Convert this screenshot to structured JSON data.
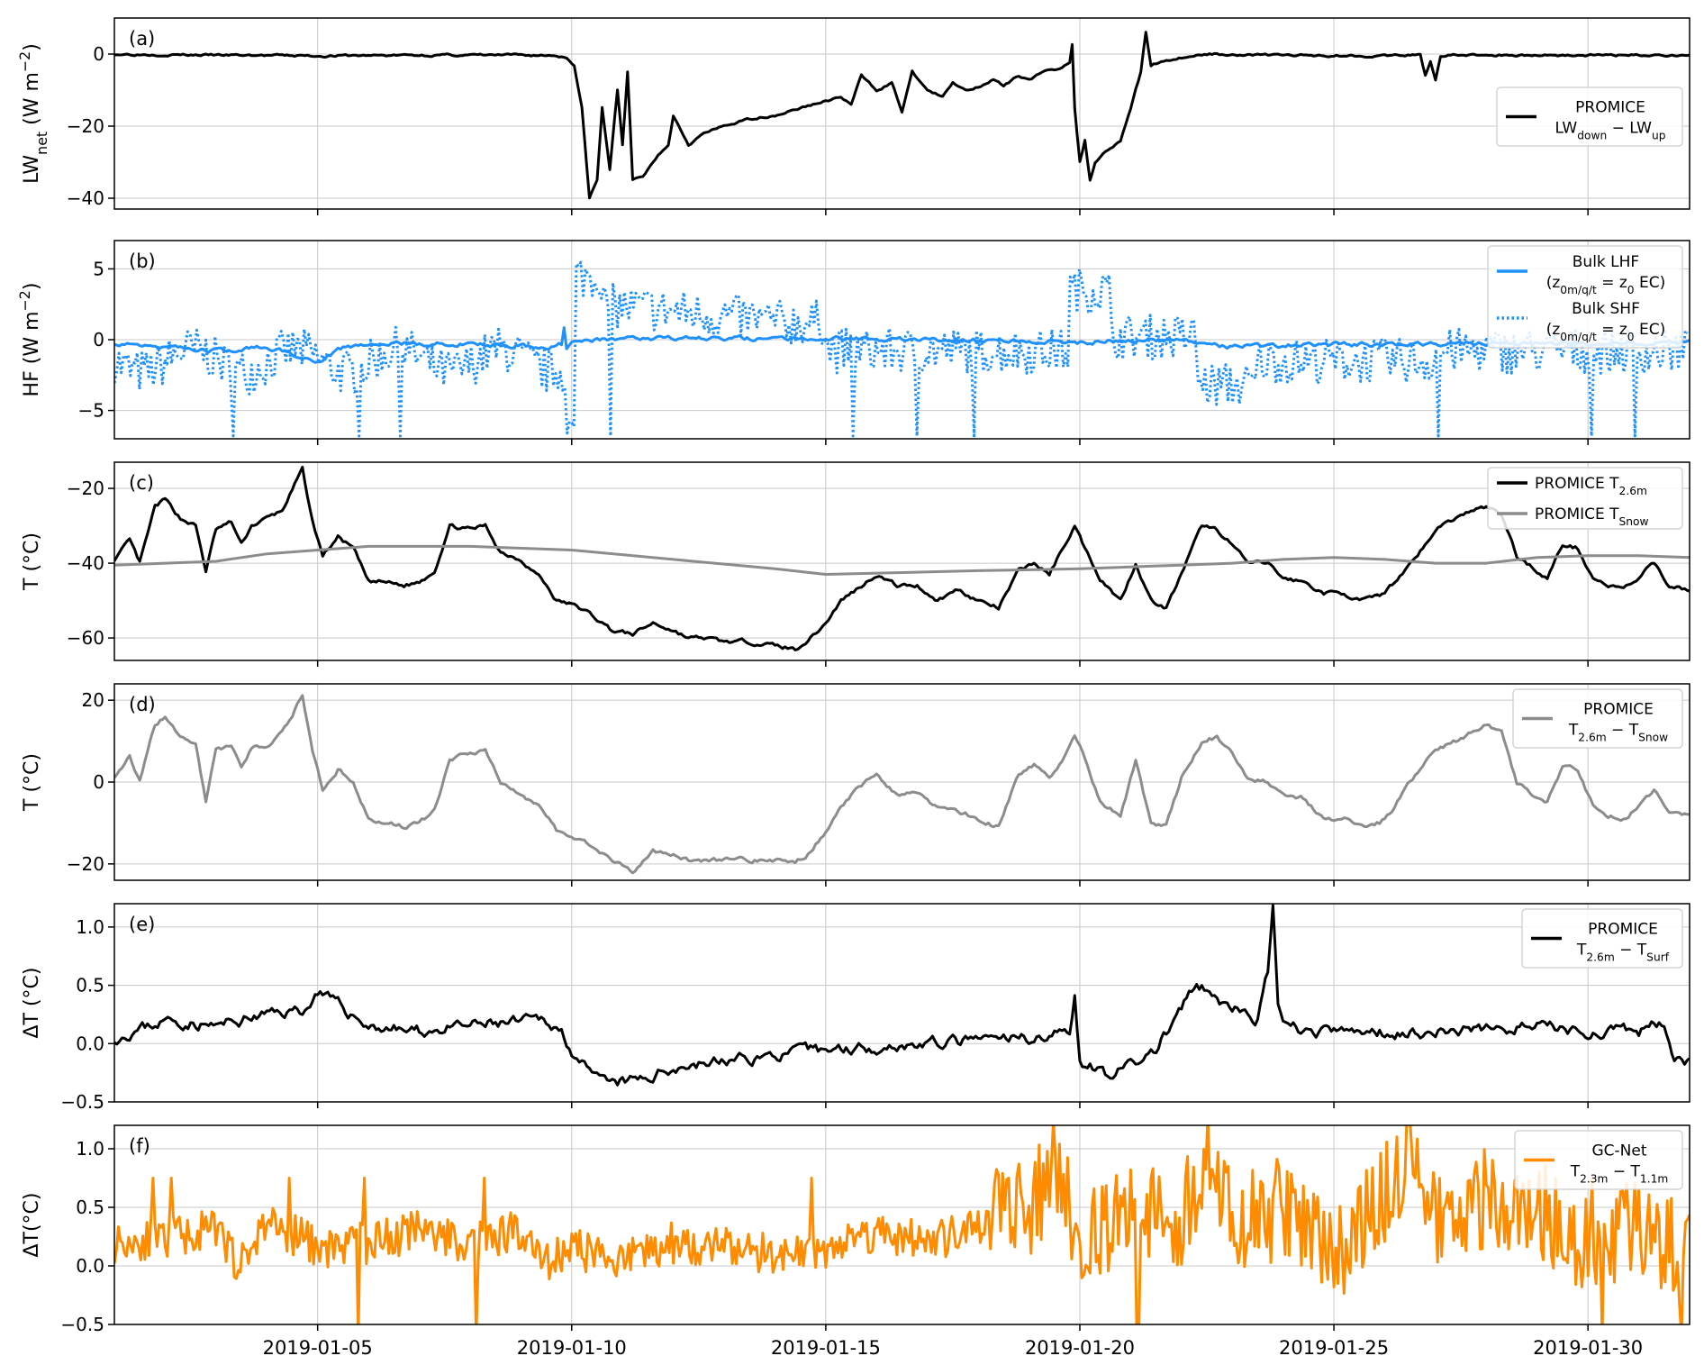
{
  "x_ticks": [
    "2019-01-05",
    "2019-01-10",
    "2019-01-15",
    "2019-01-20",
    "2019-01-25",
    "2019-01-30"
  ],
  "colors": {
    "black": "#000000",
    "blue": "#1e90ff",
    "gray": "#8c8c8c",
    "orange": "#ff8c00",
    "grid": "#c8c8c8"
  },
  "chart_data": [
    {
      "type": "line",
      "panel_label": "(a)",
      "ylabel": "LW",
      "ylabel_sub": "net",
      "ylabel_rest": " (W m",
      "ylabel_sup": "−2",
      "ylabel_end": ")",
      "ylim": [
        -43,
        10
      ],
      "yticks": [
        0,
        -20,
        -40
      ],
      "ytick_labels": [
        "0",
        "−20",
        "−40"
      ],
      "grid": true,
      "legend_position": "right",
      "legend": [
        {
          "line1": "PROMICE",
          "line2_main1": "LW",
          "line2_sub1": "down",
          "line2_mid": " − LW",
          "line2_sub2": "up",
          "color": "#000000",
          "style": "solid"
        }
      ],
      "series": [
        {
          "color": "#000000",
          "style": "solid",
          "x": [
            1.0,
            3.0,
            5.0,
            7.0,
            9.0,
            9.7,
            9.9,
            10.05,
            10.2,
            10.35,
            10.5,
            10.6,
            10.75,
            10.9,
            11.0,
            11.1,
            11.2,
            11.4,
            11.5,
            11.7,
            11.9,
            12.0,
            12.3,
            12.6,
            13.0,
            13.5,
            14.0,
            14.5,
            15.0,
            15.3,
            15.5,
            15.7,
            16.0,
            16.3,
            16.5,
            16.7,
            17.0,
            17.3,
            17.5,
            17.8,
            18.0,
            18.3,
            18.5,
            18.8,
            19.0,
            19.3,
            19.6,
            19.8,
            19.85,
            19.9,
            20.0,
            20.1,
            20.2,
            20.3,
            20.5,
            20.8,
            21.0,
            21.2,
            21.3,
            21.4,
            21.6,
            22.0,
            22.5,
            24.0,
            26.0,
            26.7,
            26.8,
            26.9,
            27.0,
            27.1,
            27.3,
            28.0,
            30.0,
            32.0
          ],
          "y": [
            0,
            -0.3,
            -0.5,
            -0.3,
            -0.3,
            -0.4,
            -1,
            -3,
            -15,
            -40,
            -35,
            -15,
            -32,
            -10,
            -25,
            -5,
            -35,
            -34,
            -32,
            -28,
            -25,
            -17,
            -25,
            -22,
            -20,
            -18,
            -17,
            -15,
            -13,
            -12,
            -14,
            -6,
            -10,
            -8,
            -16,
            -5,
            -10,
            -12,
            -8,
            -10,
            -9,
            -7,
            -9,
            -6,
            -7,
            -5,
            -4,
            -2,
            3,
            -15,
            -30,
            -24,
            -35,
            -30,
            -27,
            -24,
            -15,
            -5,
            6,
            -3,
            -2,
            -1,
            0,
            -0.3,
            -0.5,
            -0.3,
            -6,
            -2,
            -7,
            -0.5,
            -0.3,
            -0.3,
            -0.3,
            -0.3
          ]
        }
      ]
    },
    {
      "type": "line",
      "panel_label": "(b)",
      "ylabel": "HF",
      "ylabel_sub": "",
      "ylabel_rest": " (W m",
      "ylabel_sup": "−2",
      "ylabel_end": ")",
      "ylim": [
        -7,
        7
      ],
      "yticks": [
        5,
        0,
        -5
      ],
      "ytick_labels": [
        "5",
        "0",
        "−5"
      ],
      "grid": true,
      "legend_position": "top-right",
      "legend": [
        {
          "line1": "Bulk LHF",
          "line2_open": "(z",
          "line2_sub1": "0m/q/t",
          "line2_mid": " = z",
          "line2_sub2": "0",
          "line2_end": " EC)",
          "color": "#1e90ff",
          "style": "solid"
        },
        {
          "line1": "Bulk SHF",
          "line2_open": "(z",
          "line2_sub1": "0m/q/t",
          "line2_mid": " = z",
          "line2_sub2": "0",
          "line2_end": " EC)",
          "color": "#1e90ff",
          "style": "dotted"
        }
      ],
      "series": [
        {
          "color": "#1e90ff",
          "style": "solid",
          "x": [
            1.0,
            2.0,
            3.0,
            4.0,
            5.0,
            5.5,
            6.0,
            8.0,
            9.5,
            9.8,
            9.85,
            9.9,
            10.0,
            10.3,
            11.0,
            15.0,
            17.0,
            19.0,
            20.0,
            21.0,
            22.0,
            22.5,
            23.0,
            25.0,
            26.0,
            28.0,
            30.0,
            32.0
          ],
          "y": [
            -0.2,
            -0.4,
            -0.8,
            -0.5,
            -1.5,
            -0.6,
            -0.3,
            -0.3,
            -0.5,
            -0.3,
            1.0,
            -0.5,
            -0.2,
            0,
            0.1,
            0.1,
            0,
            -0.1,
            -0.2,
            0,
            0,
            -0.3,
            -0.5,
            -0.3,
            -0.4,
            -0.3,
            -0.3,
            -0.2
          ]
        }
      ],
      "shf_pattern": {
        "seed": 7
      }
    },
    {
      "type": "line",
      "panel_label": "(c)",
      "ylabel": "T (°C)",
      "ylim": [
        -66,
        -13
      ],
      "yticks": [
        -20,
        -40,
        -60
      ],
      "ytick_labels": [
        "−20",
        "−40",
        "−60"
      ],
      "grid": true,
      "legend_position": "top-right",
      "legend": [
        {
          "line1_main": "PROMICE T",
          "line1_sub": "2.6m",
          "color": "#000000",
          "style": "solid"
        },
        {
          "line1_main": "PROMICE T",
          "line1_sub": "Snow",
          "color": "#8c8c8c",
          "style": "solid"
        }
      ],
      "series": [
        {
          "color": "#000000",
          "style": "solid",
          "x": [
            1.0,
            1.3,
            1.5,
            1.8,
            2.0,
            2.3,
            2.6,
            2.8,
            3.0,
            3.3,
            3.5,
            3.7,
            4.0,
            4.3,
            4.7,
            4.9,
            5.1,
            5.4,
            5.7,
            6.0,
            6.3,
            6.7,
            7.0,
            7.3,
            7.6,
            8.0,
            8.3,
            8.6,
            9.0,
            9.4,
            9.7,
            10.0,
            10.3,
            10.8,
            11.2,
            11.6,
            12.0,
            12.3,
            12.6,
            13.0,
            13.5,
            14.0,
            14.4,
            14.7,
            15.0,
            15.3,
            15.6,
            16.0,
            16.4,
            16.8,
            17.2,
            17.6,
            18.0,
            18.4,
            18.8,
            19.1,
            19.4,
            19.7,
            19.9,
            20.1,
            20.4,
            20.8,
            21.1,
            21.4,
            21.7,
            22.0,
            22.4,
            22.7,
            23.0,
            23.3,
            23.7,
            24.0,
            24.4,
            24.8,
            25.2,
            25.5,
            25.9,
            26.2,
            26.5,
            26.8,
            27.1,
            27.4,
            27.7,
            28.0,
            28.3,
            28.6,
            28.9,
            29.2,
            29.5,
            29.8,
            30.1,
            30.4,
            30.7,
            31.0,
            31.3,
            31.6,
            32.0
          ],
          "y": [
            -39,
            -34,
            -40,
            -25,
            -23,
            -28,
            -30,
            -42,
            -31,
            -29,
            -35,
            -30,
            -28,
            -26,
            -15,
            -29,
            -38,
            -33,
            -36,
            -45,
            -45,
            -46,
            -45,
            -42,
            -30,
            -31,
            -30,
            -37,
            -39,
            -44,
            -50,
            -51,
            -53,
            -58,
            -59,
            -56,
            -58,
            -60,
            -60,
            -61,
            -61,
            -62,
            -63,
            -60,
            -56,
            -50,
            -47,
            -43,
            -46,
            -46,
            -50,
            -47,
            -50,
            -52,
            -42,
            -40,
            -43,
            -35,
            -30,
            -36,
            -44,
            -50,
            -40,
            -50,
            -52,
            -43,
            -30,
            -31,
            -35,
            -40,
            -40,
            -44,
            -45,
            -48,
            -48,
            -50,
            -49,
            -45,
            -40,
            -35,
            -30,
            -28,
            -26,
            -25,
            -27,
            -38,
            -41,
            -44,
            -35,
            -36,
            -44,
            -46,
            -47,
            -44,
            -40,
            -46,
            -47
          ]
        },
        {
          "color": "#8c8c8c",
          "style": "solid",
          "x": [
            1.0,
            3.0,
            4.0,
            5.0,
            6.0,
            8.0,
            10.0,
            12.0,
            14.0,
            15.0,
            18.0,
            20.0,
            21.0,
            22.0,
            23.0,
            24.0,
            25.0,
            26.0,
            27.0,
            28.0,
            29.0,
            30.0,
            31.0,
            32.0
          ],
          "y": [
            -40.5,
            -39.5,
            -37.5,
            -36.5,
            -35.5,
            -35.5,
            -36.5,
            -39,
            -41.5,
            -43,
            -42,
            -41.5,
            -41,
            -40.5,
            -40,
            -39,
            -38.5,
            -39,
            -40,
            -40,
            -38.5,
            -38,
            -38,
            -38.5
          ]
        }
      ]
    },
    {
      "type": "line",
      "panel_label": "(d)",
      "ylabel": "T (°C)",
      "ylim": [
        -24,
        24
      ],
      "yticks": [
        20,
        0,
        -20
      ],
      "ytick_labels": [
        "20",
        "0",
        "−20"
      ],
      "grid": true,
      "legend_position": "top-right",
      "legend": [
        {
          "line1": "PROMICE",
          "line2_main1": "T",
          "line2_sub1": "2.6m",
          "line2_mid": " − T",
          "line2_sub2": "Snow",
          "color": "#8c8c8c",
          "style": "solid"
        }
      ],
      "series": [
        {
          "color": "#8c8c8c",
          "style": "solid",
          "x": [
            1.0,
            1.3,
            1.5,
            1.8,
            2.0,
            2.3,
            2.6,
            2.8,
            3.0,
            3.3,
            3.5,
            3.7,
            4.0,
            4.3,
            4.7,
            4.9,
            5.1,
            5.4,
            5.7,
            6.0,
            6.3,
            6.7,
            7.0,
            7.3,
            7.6,
            8.0,
            8.3,
            8.6,
            9.0,
            9.4,
            9.7,
            10.0,
            10.3,
            10.8,
            11.2,
            11.6,
            12.0,
            12.3,
            12.6,
            13.0,
            13.5,
            14.0,
            14.4,
            14.7,
            15.0,
            15.3,
            15.6,
            16.0,
            16.4,
            16.8,
            17.2,
            17.6,
            18.0,
            18.4,
            18.8,
            19.1,
            19.4,
            19.7,
            19.9,
            20.1,
            20.4,
            20.8,
            21.1,
            21.4,
            21.7,
            22.0,
            22.4,
            22.7,
            23.0,
            23.3,
            23.7,
            24.0,
            24.4,
            24.8,
            25.2,
            25.5,
            25.9,
            26.2,
            26.5,
            26.8,
            27.1,
            27.4,
            27.7,
            28.0,
            28.3,
            28.6,
            28.9,
            29.2,
            29.5,
            29.8,
            30.1,
            30.4,
            30.7,
            31.0,
            31.3,
            31.6,
            32.0
          ],
          "y": [
            1.5,
            6,
            0,
            14,
            16,
            11,
            9,
            -5,
            8,
            9,
            3,
            8,
            9,
            12,
            21,
            7,
            -2,
            3,
            0,
            -9,
            -10,
            -11,
            -10,
            -7,
            5,
            7,
            8,
            0,
            -3,
            -6,
            -12,
            -13,
            -15,
            -19,
            -22,
            -17,
            -18,
            -19,
            -19,
            -19,
            -19,
            -19,
            -20,
            -17,
            -12,
            -6,
            -2,
            2,
            -3,
            -3,
            -6,
            -7,
            -9,
            -11,
            2,
            4,
            1,
            6,
            11,
            6,
            -5,
            -8,
            5,
            -10,
            -11,
            1,
            10,
            11,
            7,
            1,
            0,
            -3,
            -4,
            -9,
            -9,
            -11,
            -10,
            -6,
            0,
            5,
            8,
            10,
            12,
            14,
            12,
            0,
            -3,
            -5,
            4,
            3,
            -6,
            -8,
            -9,
            -6,
            -2,
            -8,
            -8
          ]
        }
      ]
    },
    {
      "type": "line",
      "panel_label": "(e)",
      "ylabel": "ΔT (°C)",
      "ylim": [
        -0.5,
        1.2
      ],
      "yticks": [
        1.0,
        0.5,
        0.0,
        -0.5
      ],
      "ytick_labels": [
        "1.0",
        "0.5",
        "0.0",
        "−0.5"
      ],
      "grid": true,
      "legend_position": "top-right",
      "legend": [
        {
          "line1": "PROMICE",
          "line2_main1": "T",
          "line2_sub1": "2.6m",
          "line2_mid": " − T",
          "line2_sub2": "Surf",
          "color": "#000000",
          "style": "solid"
        }
      ],
      "series": [
        {
          "color": "#000000",
          "style": "solid",
          "x": [
            1.0,
            2.0,
            3.0,
            4.0,
            4.8,
            5.0,
            6.0,
            7.0,
            8.0,
            9.5,
            9.8,
            10.0,
            10.4,
            10.8,
            11.5,
            12.0,
            13.0,
            14.0,
            15.0,
            17.0,
            19.0,
            19.8,
            19.9,
            20.0,
            20.5,
            21.0,
            21.5,
            22.0,
            22.3,
            23.0,
            23.5,
            23.7,
            23.8,
            23.9,
            24.0,
            24.5,
            25.0,
            27.0,
            29.0,
            30.0,
            31.0,
            31.5,
            31.7,
            32.0
          ],
          "y": [
            0.05,
            0.2,
            0.15,
            0.25,
            0.3,
            0.45,
            0.15,
            0.1,
            0.15,
            0.2,
            0.1,
            -0.05,
            -0.3,
            -0.35,
            -0.3,
            -0.2,
            -0.15,
            -0.1,
            -0.05,
            0.0,
            0.05,
            0.1,
            0.45,
            -0.15,
            -0.25,
            -0.2,
            -0.05,
            0.3,
            0.5,
            0.3,
            0.2,
            0.6,
            1.2,
            0.3,
            0.15,
            0.1,
            0.1,
            0.1,
            0.15,
            0.1,
            0.1,
            0.2,
            -0.1,
            -0.15
          ]
        }
      ]
    },
    {
      "type": "line",
      "panel_label": "(f)",
      "ylabel": "ΔT(°C)",
      "ylim": [
        -0.5,
        1.2
      ],
      "yticks": [
        1.0,
        0.5,
        0.0,
        -0.5
      ],
      "ytick_labels": [
        "1.0",
        "0.5",
        "0.0",
        "−0.5"
      ],
      "grid": true,
      "legend_position": "top-right",
      "legend": [
        {
          "line1": "GC-Net",
          "line2_main1": "T",
          "line2_sub1": "2.3m",
          "line2_mid": " − T",
          "line2_sub2": "1.1m",
          "color": "#ff8c00",
          "style": "solid"
        }
      ],
      "series": [
        {
          "color": "#ff8c00",
          "style": "solid",
          "x": [
            1.0,
            2.0,
            3.0,
            3.5,
            4.0,
            5.0,
            6.0,
            7.0,
            8.0,
            9.0,
            9.5,
            10.0,
            11.0,
            12.0,
            13.0,
            14.0,
            15.0,
            16.0,
            17.0,
            18.0,
            18.5,
            19.0,
            19.5,
            20.0,
            21.0,
            22.0,
            22.5,
            23.0,
            24.0,
            25.0,
            26.0,
            26.5,
            27.0,
            28.0,
            29.0,
            30.0,
            30.5,
            31.0,
            32.0
          ],
          "y": [
            0.2,
            0.25,
            0.3,
            0.0,
            0.4,
            0.15,
            0.2,
            0.3,
            0.2,
            0.3,
            0.05,
            0.15,
            0.05,
            0.2,
            0.15,
            0.1,
            0.15,
            0.3,
            0.2,
            0.3,
            0.6,
            0.4,
            0.9,
            0.2,
            0.5,
            0.4,
            1.0,
            0.3,
            0.5,
            0.1,
            0.6,
            1.0,
            0.3,
            0.6,
            0.5,
            0.2,
            0.3,
            0.4,
            0.0
          ]
        }
      ],
      "noise": {
        "seed": 11
      }
    }
  ]
}
